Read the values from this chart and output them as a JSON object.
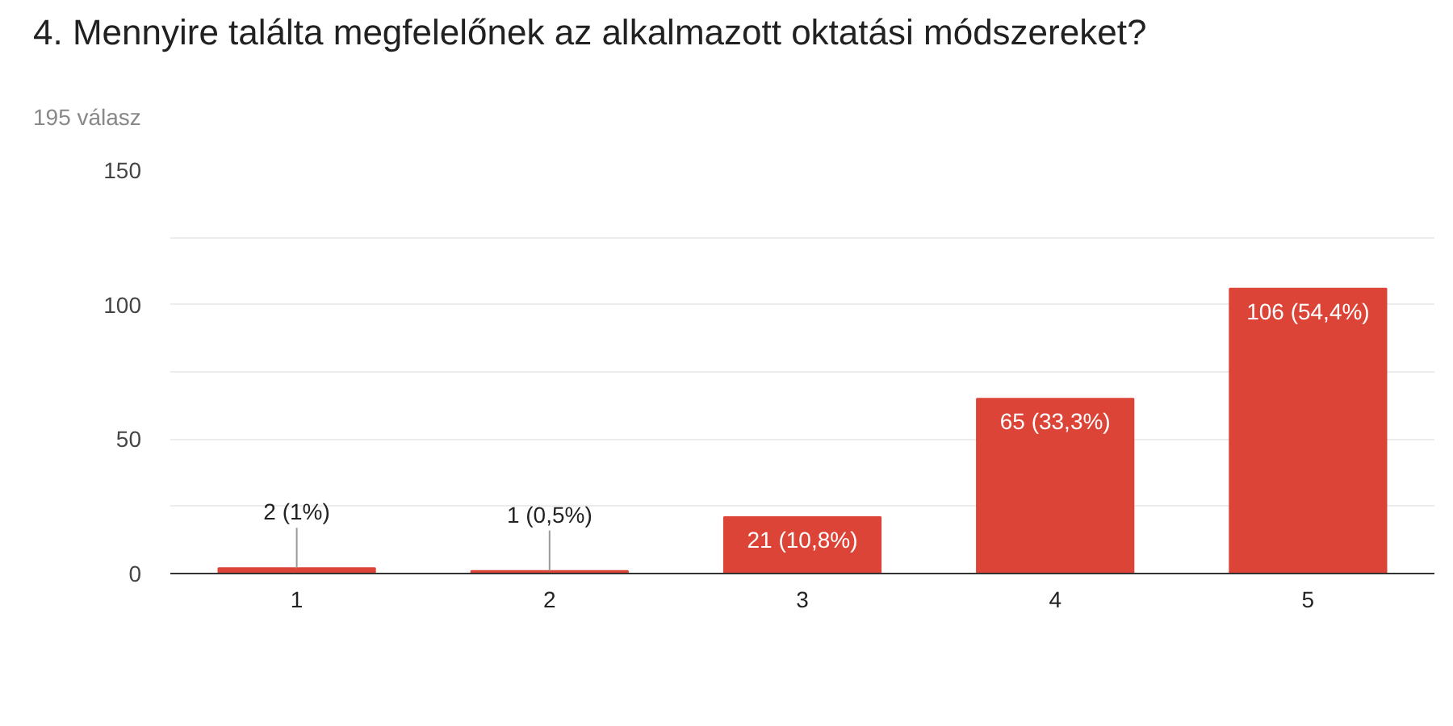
{
  "chart_data": {
    "type": "bar",
    "title": "4. Mennyire találta megfelelőnek az alkalmazott oktatási módszereket?",
    "subtitle": "195 válasz",
    "categories": [
      "1",
      "2",
      "3",
      "4",
      "5"
    ],
    "values": [
      2,
      1,
      21,
      65,
      106
    ],
    "value_labels": [
      "2 (1%)",
      "1 (0,5%)",
      "21 (10,8%)",
      "65 (33,3%)",
      "106 (54,4%)"
    ],
    "color": "#db4437",
    "ylim": [
      0,
      150
    ],
    "yticks": [
      0,
      {
        "value": 25,
        "label": null
      },
      50,
      {
        "value": 75,
        "label": null
      },
      100,
      {
        "value": 125,
        "label": null
      },
      150
    ],
    "grid": "y"
  }
}
